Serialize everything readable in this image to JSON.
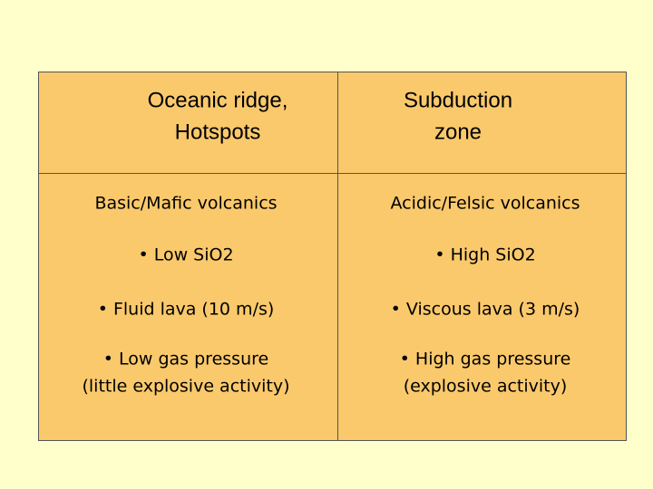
{
  "table": {
    "header": [
      [
        "Oceanic ridge,",
        "Hotspots"
      ],
      [
        "Subduction",
        "zone"
      ]
    ],
    "rows": [
      [
        [
          "Basic/Mafic volcanics"
        ],
        [
          "Acidic/Felsic volcanics"
        ]
      ],
      [
        [
          "• Low SiO2"
        ],
        [
          "• High SiO2"
        ]
      ],
      [
        [
          "• Fluid lava (10 m/s)"
        ],
        [
          "• Viscous lava (3 m/s)"
        ]
      ],
      [
        [
          "• Low gas pressure",
          "(little explosive activity)"
        ],
        [
          "• High gas pressure",
          "(explosive activity)"
        ]
      ]
    ]
  }
}
